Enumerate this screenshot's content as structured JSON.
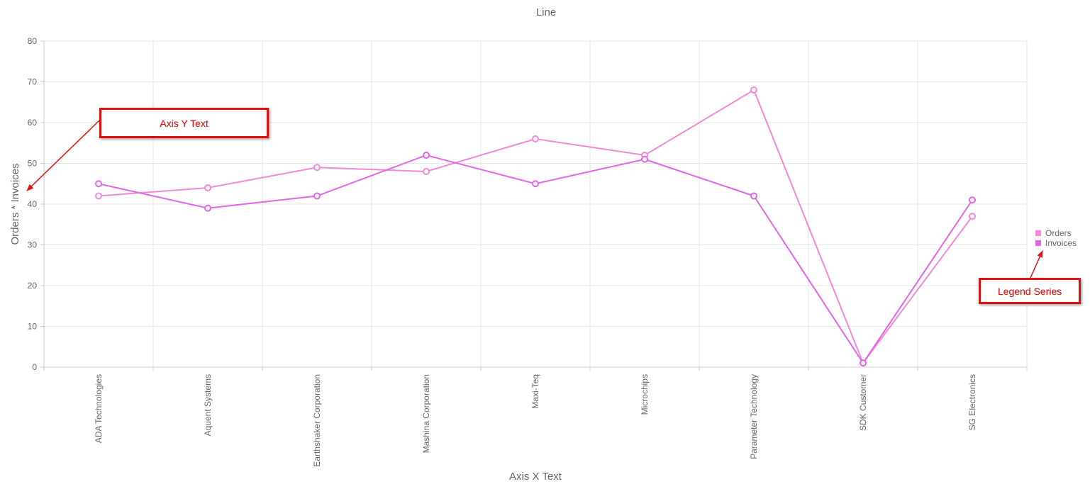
{
  "chart_data": {
    "type": "line",
    "title": "Line",
    "xlabel": "Axis X Text",
    "ylabel": "Orders * Invoices",
    "categories": [
      "ADA Technologies",
      "Aquent Systems",
      "Earthshaker Corporation",
      "Mashina Corporation",
      "Maxi-Teq",
      "Microchips",
      "Parameter Technology",
      "SDK Customer",
      "SG Electronics"
    ],
    "series": [
      {
        "name": "Orders",
        "values": [
          42,
          44,
          49,
          48,
          56,
          52,
          68,
          1,
          37
        ],
        "color": "#f08ad8"
      },
      {
        "name": "Invoices",
        "values": [
          45,
          39,
          42,
          52,
          45,
          51,
          42,
          1,
          41
        ],
        "color": "#e066e6"
      }
    ],
    "ylim": [
      0,
      80
    ],
    "yticks": [
      0,
      10,
      20,
      30,
      40,
      50,
      60,
      70,
      80
    ],
    "grid": true,
    "legend_position": "right"
  },
  "annotations": {
    "axis_y_callout": "Axis Y Text",
    "legend_callout": "Legend Series",
    "color": "#e01010"
  }
}
